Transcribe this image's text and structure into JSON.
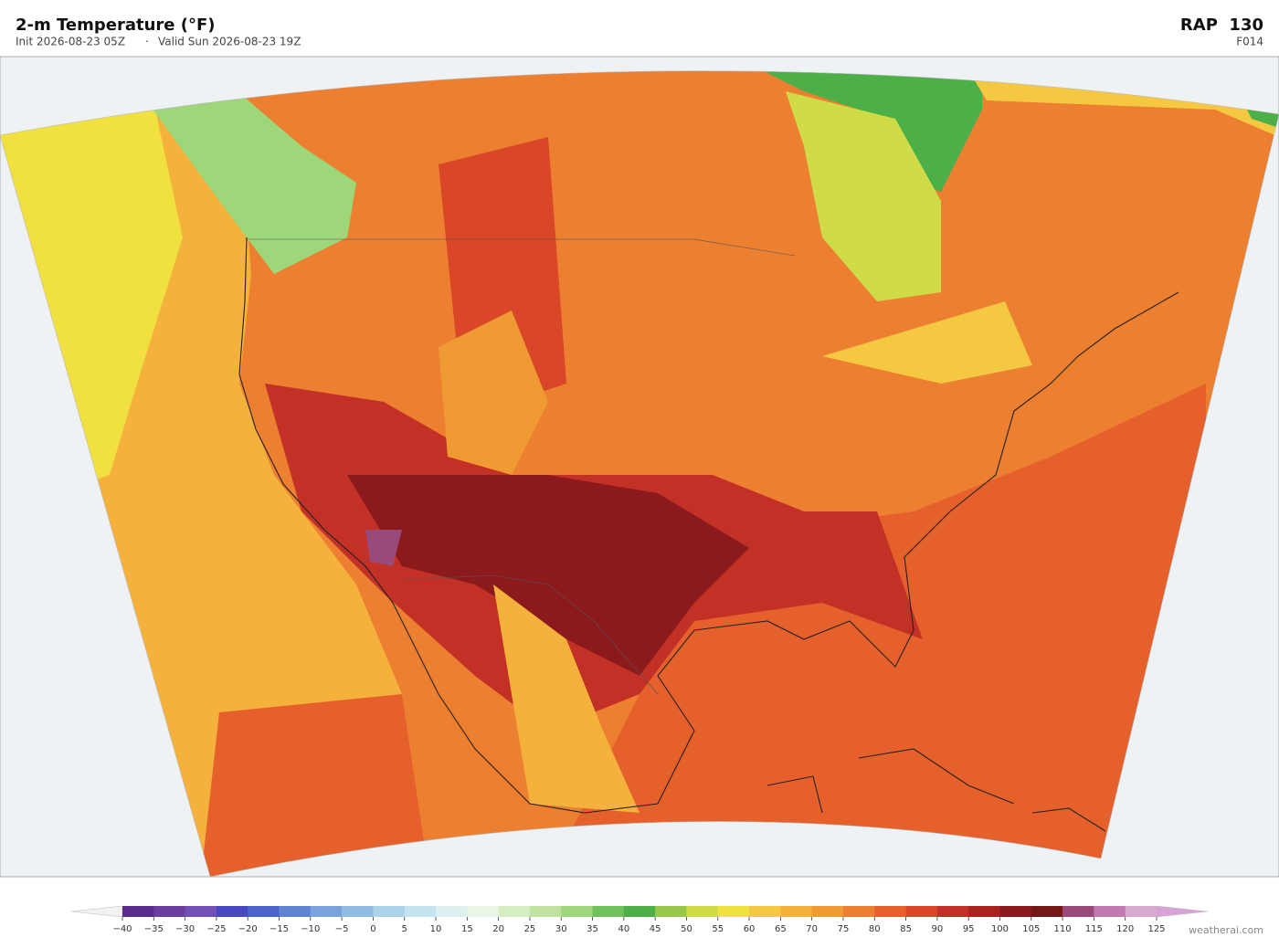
{
  "header": {
    "title": "2-m Temperature  (°F)",
    "init": "Init 2026-08-23 05Z",
    "valid": "Valid Sun 2026-08-23 19Z",
    "model": "RAP  130",
    "forecast_hour": "F014"
  },
  "colorbar": {
    "ticks": [
      {
        "value": -40,
        "label": "−40"
      },
      {
        "value": -35,
        "label": "−35"
      },
      {
        "value": -30,
        "label": "−30"
      },
      {
        "value": -25,
        "label": "−25"
      },
      {
        "value": -20,
        "label": "−20"
      },
      {
        "value": -15,
        "label": "−15"
      },
      {
        "value": -10,
        "label": "−10"
      },
      {
        "value": -5,
        "label": "−5"
      },
      0,
      5,
      10,
      15,
      20,
      25,
      30,
      35,
      40,
      45,
      50,
      55,
      60,
      65,
      70,
      75,
      80,
      85,
      90,
      95,
      100,
      105,
      110,
      115,
      120,
      125
    ],
    "colors": [
      "#5a2d8c",
      "#6a3d9e",
      "#7350b5",
      "#4848c0",
      "#4b63cc",
      "#5f84d4",
      "#7aa3dc",
      "#92bde3",
      "#abd3ea",
      "#c6e4f0",
      "#dff0f0",
      "#eaf6e6",
      "#d6edc4",
      "#bfe39e",
      "#9ed67a",
      "#6fc25a",
      "#4caf48",
      "#98c84a",
      "#cfdc48",
      "#f0e040",
      "#f5c842",
      "#f4b13c",
      "#f09a34",
      "#ec7f30",
      "#e6602c",
      "#d94628",
      "#c33025",
      "#a8221f",
      "#8c1a1c",
      "#751719",
      "#9a4a7a",
      "#c07ab0",
      "#d8a8d0"
    ],
    "under_color": "#f2f2f2",
    "over_color": "#d9a3d8"
  },
  "credit": "weatherai.com"
}
